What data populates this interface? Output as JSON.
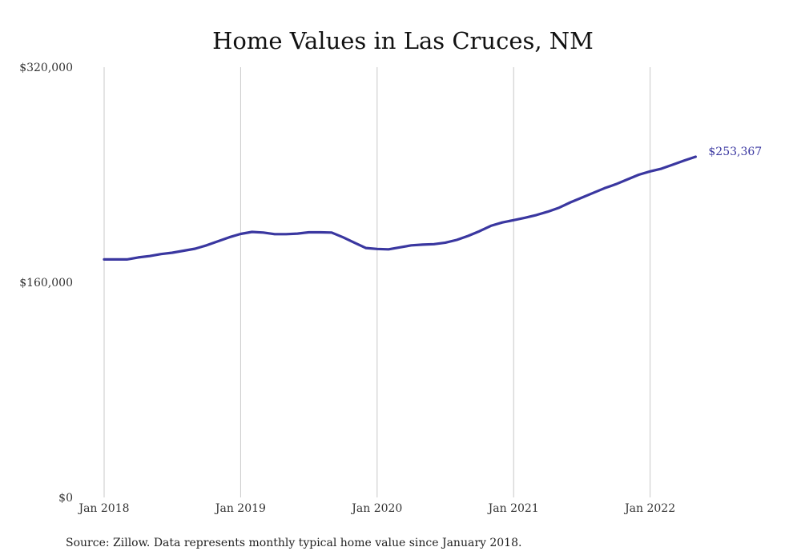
{
  "chart_data": {
    "type": "line",
    "title": "Home Values in Las Cruces, NM",
    "xlabel": "",
    "ylabel": "",
    "x_ticks": [
      "Jan 2018",
      "Jan 2019",
      "Jan 2020",
      "Jan 2021",
      "Jan 2022"
    ],
    "y_ticks": [
      "$320,000",
      "$160,000",
      "$0"
    ],
    "ylim": [
      0,
      320000
    ],
    "grid": "vertical",
    "legend": "none",
    "line_color": "#3a37a0",
    "end_label": "$253,367",
    "series": [
      {
        "x": [
          "2018-01",
          "2018-02",
          "2018-03",
          "2018-04",
          "2018-05",
          "2018-06",
          "2018-07",
          "2018-08",
          "2018-09",
          "2018-10",
          "2018-11",
          "2018-12",
          "2019-01",
          "2019-02",
          "2019-03",
          "2019-04",
          "2019-05",
          "2019-06",
          "2019-07",
          "2019-08",
          "2019-09",
          "2019-10",
          "2019-11",
          "2019-12",
          "2020-01",
          "2020-02",
          "2020-03",
          "2020-04",
          "2020-05",
          "2020-06",
          "2020-07",
          "2020-08",
          "2020-09",
          "2020-10",
          "2020-11",
          "2020-12",
          "2021-01",
          "2021-02",
          "2021-03",
          "2021-04",
          "2021-05",
          "2021-06",
          "2021-07",
          "2021-08",
          "2021-09",
          "2021-10",
          "2021-11",
          "2021-12",
          "2022-01",
          "2022-02",
          "2022-03",
          "2022-04",
          "2022-05"
        ],
        "values": [
          177000,
          177000,
          177000,
          178500,
          179500,
          181000,
          182000,
          183500,
          185000,
          187500,
          190500,
          193500,
          196000,
          197500,
          197000,
          195800,
          195800,
          196200,
          197200,
          197200,
          197000,
          193500,
          189500,
          185500,
          184800,
          184500,
          186000,
          187500,
          188000,
          188400,
          189500,
          191500,
          194500,
          198000,
          202000,
          204500,
          206200,
          208000,
          210000,
          212500,
          215500,
          219500,
          223000,
          226500,
          230000,
          233000,
          236500,
          240000,
          242500,
          244500,
          247500,
          250500,
          253367
        ]
      }
    ]
  },
  "source_note": "Source: Zillow. Data represents monthly typical home value since January 2018."
}
